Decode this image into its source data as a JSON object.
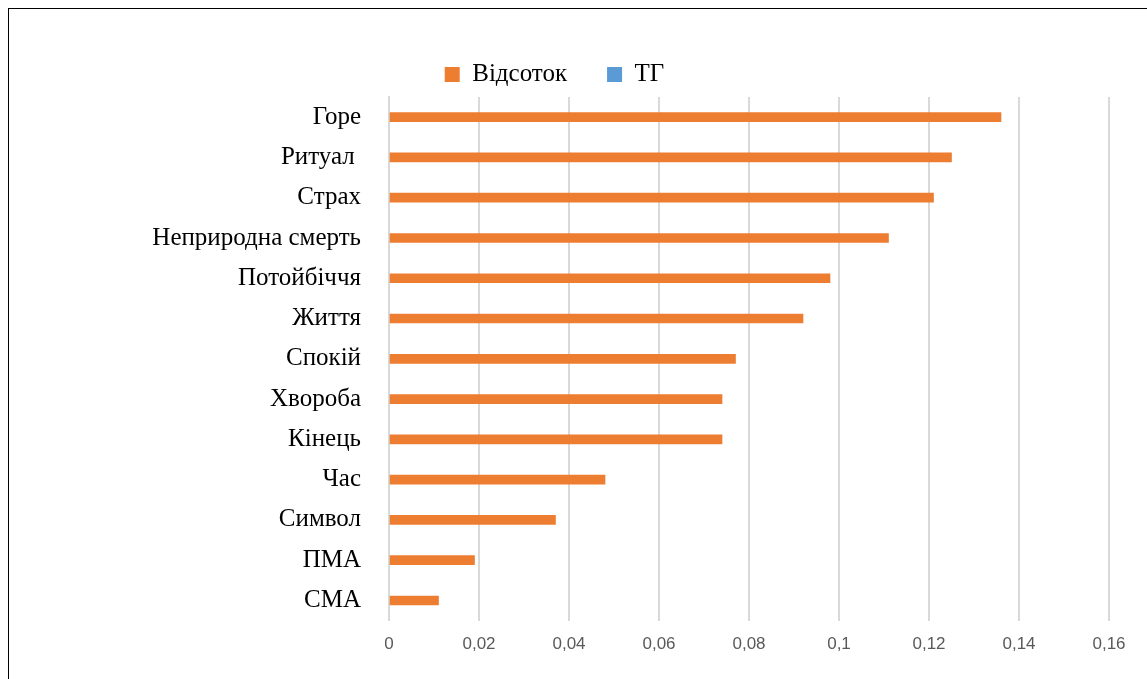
{
  "chart_data": {
    "type": "bar",
    "orientation": "horizontal",
    "categories": [
      "Горе",
      "Ритуал ",
      "Страх",
      "Неприродна смерть",
      "Потойбіччя",
      "Життя",
      "Спокій",
      "Хвороба",
      "Кінець",
      "Час",
      "Символ",
      "ПМА",
      "СМА"
    ],
    "series": [
      {
        "name": "Відсоток",
        "color": "#ed7d31",
        "values": [
          0.136,
          0.125,
          0.121,
          0.111,
          0.098,
          0.092,
          0.077,
          0.074,
          0.074,
          0.048,
          0.037,
          0.019,
          0.011
        ]
      },
      {
        "name": "ТГ",
        "color": "#5b9bd5",
        "values": [
          null,
          null,
          null,
          null,
          null,
          null,
          null,
          null,
          null,
          null,
          null,
          null,
          null
        ]
      }
    ],
    "xlim": [
      0,
      0.16
    ],
    "xticks": [
      0,
      {
        "value": 0.02,
        "label": "0,02"
      },
      {
        "value": 0.04,
        "label": "0,04"
      },
      {
        "value": 0.06,
        "label": "0,06"
      },
      {
        "value": 0.08,
        "label": "0,08"
      },
      {
        "value": 0.1,
        "label": "0,1"
      },
      {
        "value": 0.12,
        "label": "0,12"
      },
      {
        "value": 0.14,
        "label": "0,14"
      },
      {
        "value": 0.16,
        "label": "0,16"
      }
    ],
    "grid": "x",
    "legend": "top"
  }
}
